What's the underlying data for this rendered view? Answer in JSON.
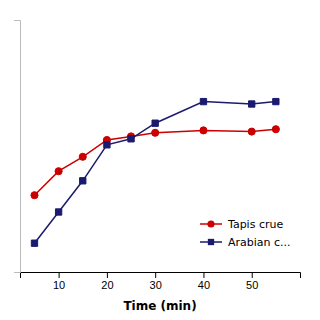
{
  "chart_data": {
    "type": "line",
    "x": [
      5,
      10,
      15,
      20,
      25,
      30,
      40,
      50,
      55
    ],
    "series": [
      {
        "name": "Tapis crue",
        "color": "#cc0000",
        "marker": "circle",
        "values": [
          3.2,
          4.2,
          4.8,
          5.5,
          5.65,
          5.8,
          5.9,
          5.85,
          5.95
        ]
      },
      {
        "name": "Arabian c...",
        "color": "#1a1a6e",
        "marker": "square",
        "values": [
          1.2,
          2.5,
          3.8,
          5.3,
          5.55,
          6.2,
          7.1,
          7.0,
          7.1
        ]
      }
    ],
    "xlabel": "Time (min)",
    "xlim": [
      2,
      60
    ],
    "ylim": [
      0,
      10.5
    ],
    "xticks": [
      10,
      20,
      30,
      40,
      50
    ],
    "grid": false,
    "legend": "lower right",
    "tick_labels": "x"
  }
}
